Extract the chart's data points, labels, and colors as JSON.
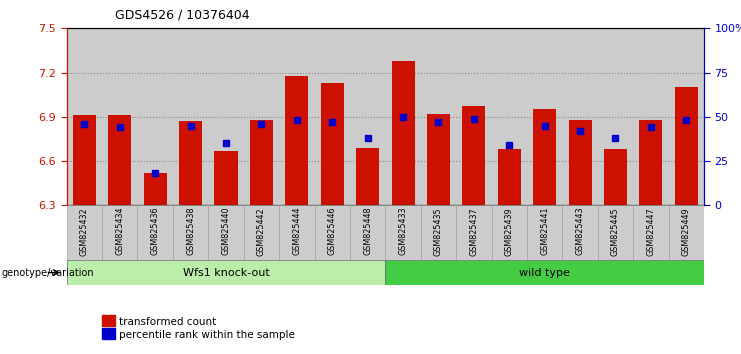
{
  "title": "GDS4526 / 10376404",
  "samples": [
    "GSM825432",
    "GSM825434",
    "GSM825436",
    "GSM825438",
    "GSM825440",
    "GSM825442",
    "GSM825444",
    "GSM825446",
    "GSM825448",
    "GSM825433",
    "GSM825435",
    "GSM825437",
    "GSM825439",
    "GSM825441",
    "GSM825443",
    "GSM825445",
    "GSM825447",
    "GSM825449"
  ],
  "red_values": [
    6.91,
    6.91,
    6.52,
    6.87,
    6.67,
    6.88,
    7.18,
    7.13,
    6.69,
    7.28,
    6.92,
    6.97,
    6.68,
    6.95,
    6.88,
    6.68,
    6.88,
    7.1
  ],
  "blue_values": [
    46,
    44,
    18,
    45,
    35,
    46,
    48,
    47,
    38,
    50,
    47,
    49,
    34,
    45,
    42,
    38,
    44,
    48
  ],
  "ymin": 6.3,
  "ymax": 7.5,
  "group1_label": "Wfs1 knock-out",
  "group2_label": "wild type",
  "group1_count": 9,
  "group2_count": 9,
  "legend_red": "transformed count",
  "legend_blue": "percentile rank within the sample",
  "genotype_label": "genotype/variation",
  "bar_color": "#cc1100",
  "blue_color": "#0000cc",
  "grid_color": "#888888",
  "bg_tick": "#cccccc",
  "group1_bg": "#bbeeaa",
  "group2_bg": "#44cc44",
  "right_axis_color": "#0000cc",
  "left_axis_color": "#cc1100",
  "yticks_left": [
    6.3,
    6.6,
    6.9,
    7.2,
    7.5
  ],
  "yticks_right": [
    0,
    25,
    50,
    75,
    100
  ],
  "grid_lines": [
    6.6,
    6.9,
    7.2
  ]
}
